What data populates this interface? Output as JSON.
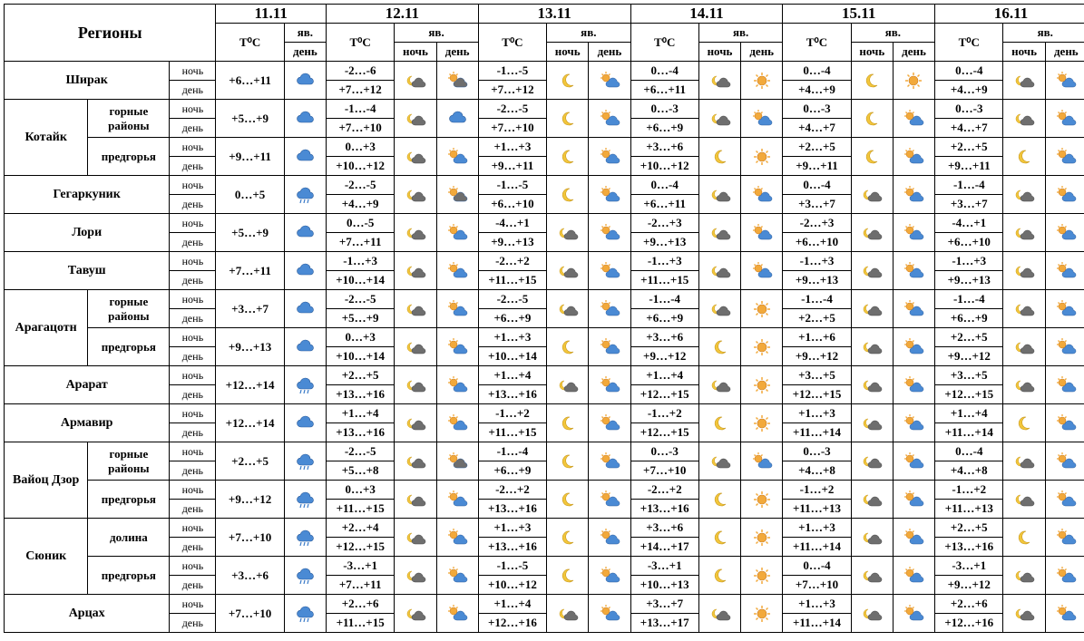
{
  "headers": {
    "regions": "Регионы",
    "tc": "T⁰C",
    "phen": "яв.",
    "night": "ночь",
    "day": "день",
    "nd_night": "ночь",
    "nd_day": "день"
  },
  "dates": [
    "11.11",
    "12.11",
    "13.11",
    "14.11",
    "15.11",
    "16.11"
  ],
  "icons": {
    "cloud": {
      "type": "cloud",
      "fill": "#4a8ad4"
    },
    "rain": {
      "type": "rain",
      "fill": "#4a8ad4"
    },
    "night_cloud": {
      "type": "moonc",
      "fill": "#6e6e6e",
      "moon": "#f2c63b"
    },
    "sun_cloud": {
      "type": "sunc",
      "fill": "#4a8ad4",
      "sun": "#f2a93b"
    },
    "dark_cloud": {
      "type": "cloud",
      "fill": "#6e6e6e"
    },
    "dark_sun": {
      "type": "sunc",
      "fill": "#6e6e6e",
      "sun": "#f2a93b"
    },
    "sun": {
      "type": "sun",
      "sun": "#f2a93b"
    },
    "moon": {
      "type": "moon",
      "moon": "#f2c63b"
    }
  },
  "rows": [
    {
      "name": "Ширак",
      "subs": [
        {
          "sub": null,
          "d1_t": "+6…+11",
          "d1_i": "cloud",
          "d2_n": "-2…-6",
          "d2_d": "+7…+12",
          "d2_in": "night_cloud",
          "d2_id": "dark_sun",
          "d3_n": "-1…-5",
          "d3_d": "+7…+12",
          "d3_in": "moon",
          "d3_id": "sun_cloud",
          "d4_n": "0…-4",
          "d4_d": "+6…+11",
          "d4_in": "night_cloud",
          "d4_id": "sun",
          "d5_n": "0…-4",
          "d5_d": "+4…+9",
          "d5_in": "moon",
          "d5_id": "sun",
          "d6_n": "0…-4",
          "d6_d": "+4…+9",
          "d6_in": "night_cloud",
          "d6_id": "sun_cloud"
        }
      ]
    },
    {
      "name": "Котайк",
      "subs": [
        {
          "sub": "горные районы",
          "d1_t": "+5…+9",
          "d1_i": "cloud",
          "d2_n": "-1…-4",
          "d2_d": "+7…+10",
          "d2_in": "night_cloud",
          "d2_id": "cloud",
          "d3_n": "-2…-5",
          "d3_d": "+7…+10",
          "d3_in": "moon",
          "d3_id": "sun_cloud",
          "d4_n": "0…-3",
          "d4_d": "+6…+9",
          "d4_in": "night_cloud",
          "d4_id": "sun_cloud",
          "d5_n": "0…-3",
          "d5_d": "+4…+7",
          "d5_in": "moon",
          "d5_id": "sun_cloud",
          "d6_n": "0…-3",
          "d6_d": "+4…+7",
          "d6_in": "night_cloud",
          "d6_id": "sun_cloud"
        },
        {
          "sub": "предгорья",
          "d1_t": "+9…+11",
          "d1_i": "cloud",
          "d2_n": "0…+3",
          "d2_d": "+10…+12",
          "d2_in": "night_cloud",
          "d2_id": "sun_cloud",
          "d3_n": "+1…+3",
          "d3_d": "+9…+11",
          "d3_in": "moon",
          "d3_id": "sun_cloud",
          "d4_n": "+3…+6",
          "d4_d": "+10…+12",
          "d4_in": "moon",
          "d4_id": "sun",
          "d5_n": "+2…+5",
          "d5_d": "+9…+11",
          "d5_in": "moon",
          "d5_id": "sun_cloud",
          "d6_n": "+2…+5",
          "d6_d": "+9…+11",
          "d6_in": "moon",
          "d6_id": "sun_cloud"
        }
      ]
    },
    {
      "name": "Гегаркуник",
      "subs": [
        {
          "sub": null,
          "d1_t": "0…+5",
          "d1_i": "rain",
          "d2_n": "-2…-5",
          "d2_d": "+4…+9",
          "d2_in": "night_cloud",
          "d2_id": "dark_sun",
          "d3_n": "-1…-5",
          "d3_d": "+6…+10",
          "d3_in": "moon",
          "d3_id": "sun_cloud",
          "d4_n": "0…-4",
          "d4_d": "+6…+11",
          "d4_in": "night_cloud",
          "d4_id": "sun_cloud",
          "d5_n": "0…-4",
          "d5_d": "+3…+7",
          "d5_in": "night_cloud",
          "d5_id": "sun_cloud",
          "d6_n": "-1…-4",
          "d6_d": "+3…+7",
          "d6_in": "night_cloud",
          "d6_id": "sun_cloud"
        }
      ]
    },
    {
      "name": "Лори",
      "subs": [
        {
          "sub": null,
          "d1_t": "+5…+9",
          "d1_i": "cloud",
          "d2_n": "0…-5",
          "d2_d": "+7…+11",
          "d2_in": "night_cloud",
          "d2_id": "sun_cloud",
          "d3_n": "-4…+1",
          "d3_d": "+9…+13",
          "d3_in": "night_cloud",
          "d3_id": "sun_cloud",
          "d4_n": "-2…+3",
          "d4_d": "+9…+13",
          "d4_in": "night_cloud",
          "d4_id": "sun_cloud",
          "d5_n": "-2…+3",
          "d5_d": "+6…+10",
          "d5_in": "night_cloud",
          "d5_id": "sun_cloud",
          "d6_n": "-4…+1",
          "d6_d": "+6…+10",
          "d6_in": "night_cloud",
          "d6_id": "sun_cloud"
        }
      ]
    },
    {
      "name": "Тавуш",
      "subs": [
        {
          "sub": null,
          "d1_t": "+7…+11",
          "d1_i": "cloud",
          "d2_n": "-1…+3",
          "d2_d": "+10…+14",
          "d2_in": "night_cloud",
          "d2_id": "sun_cloud",
          "d3_n": "-2…+2",
          "d3_d": "+11…+15",
          "d3_in": "night_cloud",
          "d3_id": "sun_cloud",
          "d4_n": "-1…+3",
          "d4_d": "+11…+15",
          "d4_in": "night_cloud",
          "d4_id": "sun_cloud",
          "d5_n": "-1…+3",
          "d5_d": "+9…+13",
          "d5_in": "night_cloud",
          "d5_id": "sun_cloud",
          "d6_n": "-1…+3",
          "d6_d": "+9…+13",
          "d6_in": "night_cloud",
          "d6_id": "sun_cloud"
        }
      ]
    },
    {
      "name": "Арагацотн",
      "subs": [
        {
          "sub": "горные районы",
          "d1_t": "+3…+7",
          "d1_i": "cloud",
          "d2_n": "-2…-5",
          "d2_d": "+5…+9",
          "d2_in": "night_cloud",
          "d2_id": "sun_cloud",
          "d3_n": "-2…-5",
          "d3_d": "+6…+9",
          "d3_in": "night_cloud",
          "d3_id": "sun_cloud",
          "d4_n": "-1…-4",
          "d4_d": "+6…+9",
          "d4_in": "night_cloud",
          "d4_id": "sun",
          "d5_n": "-1…-4",
          "d5_d": "+2…+5",
          "d5_in": "night_cloud",
          "d5_id": "sun_cloud",
          "d6_n": "-1…-4",
          "d6_d": "+6…+9",
          "d6_in": "night_cloud",
          "d6_id": "sun_cloud"
        },
        {
          "sub": "предгорья",
          "d1_t": "+9…+13",
          "d1_i": "cloud",
          "d2_n": "0…+3",
          "d2_d": "+10…+14",
          "d2_in": "night_cloud",
          "d2_id": "sun_cloud",
          "d3_n": "+1…+3",
          "d3_d": "+10…+14",
          "d3_in": "moon",
          "d3_id": "sun_cloud",
          "d4_n": "+3…+6",
          "d4_d": "+9…+12",
          "d4_in": "moon",
          "d4_id": "sun",
          "d5_n": "+1…+6",
          "d5_d": "+9…+12",
          "d5_in": "night_cloud",
          "d5_id": "sun_cloud",
          "d6_n": "+2…+5",
          "d6_d": "+9…+12",
          "d6_in": "night_cloud",
          "d6_id": "sun_cloud"
        }
      ]
    },
    {
      "name": "Арарат",
      "subs": [
        {
          "sub": null,
          "d1_t": "+12…+14",
          "d1_i": "rain",
          "d2_n": "+2…+5",
          "d2_d": "+13…+16",
          "d2_in": "night_cloud",
          "d2_id": "sun_cloud",
          "d3_n": "+1…+4",
          "d3_d": "+13…+16",
          "d3_in": "night_cloud",
          "d3_id": "sun_cloud",
          "d4_n": "+1…+4",
          "d4_d": "+12…+15",
          "d4_in": "night_cloud",
          "d4_id": "sun",
          "d5_n": "+3…+5",
          "d5_d": "+12…+15",
          "d5_in": "night_cloud",
          "d5_id": "sun_cloud",
          "d6_n": "+3…+5",
          "d6_d": "+12…+15",
          "d6_in": "night_cloud",
          "d6_id": "sun_cloud"
        }
      ]
    },
    {
      "name": "Армавир",
      "subs": [
        {
          "sub": null,
          "d1_t": "+12…+14",
          "d1_i": "cloud",
          "d2_n": "+1…+4",
          "d2_d": "+13…+16",
          "d2_in": "night_cloud",
          "d2_id": "sun_cloud",
          "d3_n": "-1…+2",
          "d3_d": "+11…+15",
          "d3_in": "moon",
          "d3_id": "sun_cloud",
          "d4_n": "-1…+2",
          "d4_d": "+12…+15",
          "d4_in": "moon",
          "d4_id": "sun",
          "d5_n": "+1…+3",
          "d5_d": "+11…+14",
          "d5_in": "night_cloud",
          "d5_id": "sun_cloud",
          "d6_n": "+1…+4",
          "d6_d": "+11…+14",
          "d6_in": "moon",
          "d6_id": "sun_cloud"
        }
      ]
    },
    {
      "name": "Вайоц Дзор",
      "subs": [
        {
          "sub": "горные районы",
          "d1_t": "+2…+5",
          "d1_i": "rain",
          "d2_n": "-2…-5",
          "d2_d": "+5…+8",
          "d2_in": "night_cloud",
          "d2_id": "dark_sun",
          "d3_n": "-1…-4",
          "d3_d": "+6…+9",
          "d3_in": "moon",
          "d3_id": "sun_cloud",
          "d4_n": "0…-3",
          "d4_d": "+7…+10",
          "d4_in": "night_cloud",
          "d4_id": "sun_cloud",
          "d5_n": "0…-3",
          "d5_d": "+4…+8",
          "d5_in": "night_cloud",
          "d5_id": "sun_cloud",
          "d6_n": "0…-4",
          "d6_d": "+4…+8",
          "d6_in": "night_cloud",
          "d6_id": "sun_cloud"
        },
        {
          "sub": "предгорья",
          "d1_t": "+9…+12",
          "d1_i": "rain",
          "d2_n": "0…+3",
          "d2_d": "+11…+15",
          "d2_in": "night_cloud",
          "d2_id": "sun_cloud",
          "d3_n": "-2…+2",
          "d3_d": "+13…+16",
          "d3_in": "moon",
          "d3_id": "sun_cloud",
          "d4_n": "-2…+2",
          "d4_d": "+13…+16",
          "d4_in": "moon",
          "d4_id": "sun",
          "d5_n": "-1…+2",
          "d5_d": "+11…+13",
          "d5_in": "night_cloud",
          "d5_id": "sun_cloud",
          "d6_n": "-1…+2",
          "d6_d": "+11…+13",
          "d6_in": "night_cloud",
          "d6_id": "sun_cloud"
        }
      ]
    },
    {
      "name": "Сюник",
      "subs": [
        {
          "sub": "долина",
          "d1_t": "+7…+10",
          "d1_i": "rain",
          "d2_n": "+2…+4",
          "d2_d": "+12…+15",
          "d2_in": "night_cloud",
          "d2_id": "sun_cloud",
          "d3_n": "+1…+3",
          "d3_d": "+13…+16",
          "d3_in": "moon",
          "d3_id": "sun_cloud",
          "d4_n": "+3…+6",
          "d4_d": "+14…+17",
          "d4_in": "moon",
          "d4_id": "sun",
          "d5_n": "+1…+3",
          "d5_d": "+11…+14",
          "d5_in": "night_cloud",
          "d5_id": "sun_cloud",
          "d6_n": "+2…+5",
          "d6_d": "+13…+16",
          "d6_in": "moon",
          "d6_id": "sun_cloud"
        },
        {
          "sub": "предгорья",
          "d1_t": "+3…+6",
          "d1_i": "rain",
          "d2_n": "-3…+1",
          "d2_d": "+7…+11",
          "d2_in": "night_cloud",
          "d2_id": "sun_cloud",
          "d3_n": "-1…-5",
          "d3_d": "+10…+12",
          "d3_in": "moon",
          "d3_id": "sun_cloud",
          "d4_n": "-3…+1",
          "d4_d": "+10…+13",
          "d4_in": "moon",
          "d4_id": "sun",
          "d5_n": "0…-4",
          "d5_d": "+7…+10",
          "d5_in": "night_cloud",
          "d5_id": "sun_cloud",
          "d6_n": "-3…+1",
          "d6_d": "+9…+12",
          "d6_in": "night_cloud",
          "d6_id": "sun_cloud"
        }
      ]
    },
    {
      "name": "Арцах",
      "subs": [
        {
          "sub": null,
          "d1_t": "+7…+10",
          "d1_i": "rain",
          "d2_n": "+2…+6",
          "d2_d": "+11…+15",
          "d2_in": "night_cloud",
          "d2_id": "sun_cloud",
          "d3_n": "+1…+4",
          "d3_d": "+12…+16",
          "d3_in": "night_cloud",
          "d3_id": "sun_cloud",
          "d4_n": "+3…+7",
          "d4_d": "+13…+17",
          "d4_in": "night_cloud",
          "d4_id": "sun",
          "d5_n": "+1…+3",
          "d5_d": "+11…+14",
          "d5_in": "night_cloud",
          "d5_id": "sun_cloud",
          "d6_n": "+2…+6",
          "d6_d": "+12…+16",
          "d6_in": "night_cloud",
          "d6_id": "sun_cloud"
        }
      ]
    }
  ],
  "style": {
    "border_color": "#000000",
    "bg": "#ffffff",
    "font": "Times New Roman",
    "base_fontsize": 13,
    "region_col_w": 76,
    "subreg_col_w": 74,
    "nd_col_w": 42,
    "tc_col_w": 62,
    "icon_col_w": 38
  }
}
